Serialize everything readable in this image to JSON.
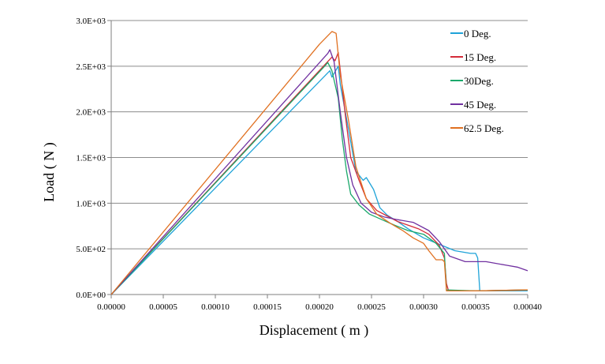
{
  "chart_data": {
    "type": "line",
    "title": "",
    "xlabel": "Displacement ( m )",
    "ylabel": "Load ( N )",
    "xlim": [
      0,
      0.0004
    ],
    "ylim": [
      0,
      3000
    ],
    "grid": "horizontal",
    "legend_position": "top-right",
    "x_ticks": [
      0,
      5e-05,
      0.0001,
      0.00015,
      0.0002,
      0.00025,
      0.0003,
      0.00035,
      0.0004
    ],
    "x_tick_labels": [
      "0.00000",
      "0.00005",
      "0.00010",
      "0.00015",
      "0.00020",
      "0.00025",
      "0.00030",
      "0.00035",
      "0.00040"
    ],
    "y_ticks": [
      0,
      500,
      1000,
      1500,
      2000,
      2500,
      3000
    ],
    "y_tick_labels": [
      "0.0E+00",
      "5.0E+02",
      "1.0E+03",
      "1.5E+03",
      "2.0E+03",
      "2.5E+03",
      "3.0E+03"
    ],
    "series": [
      {
        "name": "0 Deg.",
        "color": "#1fa3d8",
        "x": [
          0,
          0.00021,
          0.000212,
          0.000218,
          0.00022,
          0.000228,
          0.000235,
          0.000242,
          0.000245,
          0.000252,
          0.000258,
          0.000265,
          0.000275,
          0.000285,
          0.0003,
          0.000315,
          0.00033,
          0.000345,
          0.00035,
          0.000352,
          0.000354,
          0.00037,
          0.0004
        ],
        "y": [
          0,
          2450,
          2380,
          2500,
          2300,
          1800,
          1350,
          1250,
          1280,
          1150,
          950,
          870,
          800,
          720,
          620,
          550,
          480,
          450,
          450,
          400,
          40,
          40,
          40
        ]
      },
      {
        "name": "15 Deg.",
        "color": "#d42c3a",
        "x": [
          0,
          0.000212,
          0.000215,
          0.000218,
          0.000225,
          0.00023,
          0.000238,
          0.000245,
          0.000255,
          0.000265,
          0.000275,
          0.000285,
          0.000295,
          0.000305,
          0.000315,
          0.00032,
          0.000322,
          0.000324,
          0.00035,
          0.0004
        ],
        "y": [
          0,
          2600,
          2560,
          2650,
          1950,
          1500,
          1250,
          1050,
          920,
          860,
          800,
          760,
          720,
          660,
          540,
          400,
          120,
          40,
          40,
          50
        ]
      },
      {
        "name": "30Deg.",
        "color": "#1aa86b",
        "x": [
          0,
          0.000205,
          0.000208,
          0.000212,
          0.000218,
          0.000222,
          0.000226,
          0.00023,
          0.000238,
          0.000248,
          0.00026,
          0.000272,
          0.000285,
          0.0003,
          0.000312,
          0.00032,
          0.000322,
          0.00035,
          0.0004
        ],
        "y": [
          0,
          2500,
          2540,
          2450,
          2150,
          1700,
          1350,
          1100,
          980,
          880,
          820,
          760,
          700,
          660,
          560,
          450,
          50,
          40,
          50
        ]
      },
      {
        "name": "45 Deg.",
        "color": "#7030a0",
        "x": [
          0,
          0.000208,
          0.00021,
          0.000214,
          0.00022,
          0.000226,
          0.000232,
          0.00024,
          0.00025,
          0.000262,
          0.000275,
          0.00029,
          0.000305,
          0.000315,
          0.000325,
          0.00034,
          0.00036,
          0.00038,
          0.00039,
          0.0004
        ],
        "y": [
          0,
          2640,
          2680,
          2550,
          2000,
          1500,
          1200,
          1000,
          900,
          850,
          820,
          790,
          700,
          580,
          420,
          360,
          360,
          320,
          300,
          260
        ]
      },
      {
        "name": "62.5 Deg.",
        "color": "#e07020",
        "x": [
          0,
          0.0002,
          0.000212,
          0.000216,
          0.00022,
          0.000228,
          0.000235,
          0.000245,
          0.000255,
          0.000268,
          0.00028,
          0.00029,
          0.0003,
          0.000305,
          0.000312,
          0.000318,
          0.00032,
          0.000322,
          0.00035,
          0.0004
        ],
        "y": [
          0,
          2740,
          2880,
          2860,
          2400,
          1900,
          1400,
          1050,
          880,
          780,
          700,
          620,
          560,
          480,
          380,
          380,
          360,
          40,
          40,
          50
        ]
      }
    ]
  }
}
